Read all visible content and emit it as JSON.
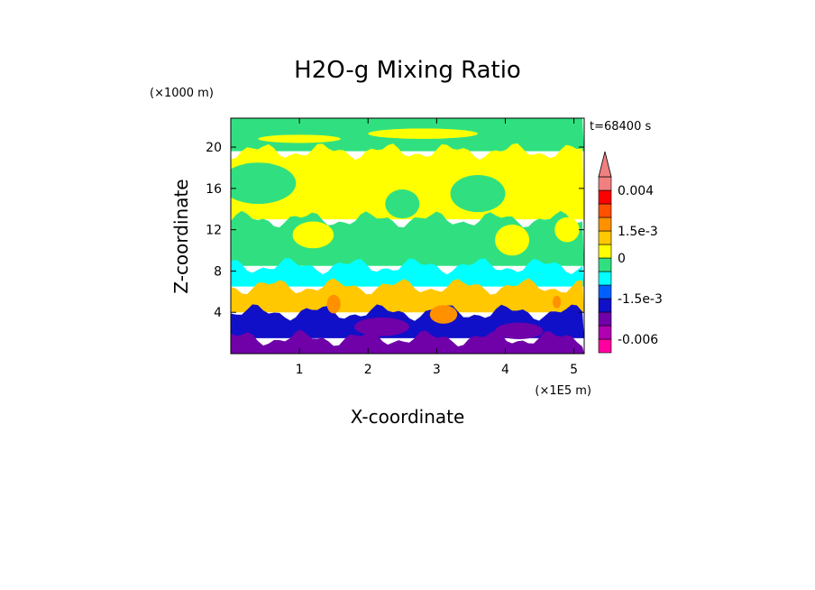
{
  "chart_data": {
    "type": "heatmap",
    "title": "H2O-g Mixing Ratio",
    "xlabel": "X-coordinate",
    "ylabel": "Z-coordinate",
    "x_unit": "(×1E5 m)",
    "y_unit": "(×1000 m)",
    "time_label": "t=68400 s",
    "xlim": [
      0,
      5.15
    ],
    "ylim": [
      0,
      22.8
    ],
    "x_ticks": [
      "1",
      "2",
      "3",
      "4",
      "5"
    ],
    "y_ticks": [
      "4",
      "8",
      "12",
      "16",
      "20"
    ],
    "colorbar": {
      "labels": [
        "0.004",
        "1.5e-3",
        "0",
        "-1.5e-3",
        "-0.006"
      ],
      "colors": [
        "#ff00a0",
        "#b000b0",
        "#7000a8",
        "#1010c8",
        "#0060ff",
        "#00ffff",
        "#30e080",
        "#ffff00",
        "#ffc800",
        "#ff9000",
        "#ff5000",
        "#ff0000",
        "#f08080"
      ],
      "extend": "max"
    },
    "layers": [
      {
        "zmin": 19.6,
        "zmax": 22.8,
        "color": "#30e080"
      },
      {
        "zmin": 13.0,
        "zmax": 19.6,
        "color": "#ffff00"
      },
      {
        "zmin": 8.5,
        "zmax": 13.0,
        "color": "#30e080"
      },
      {
        "zmin": 6.5,
        "zmax": 8.5,
        "color": "#00ffff"
      },
      {
        "zmin": 4.0,
        "zmax": 6.5,
        "color": "#ffc800"
      },
      {
        "zmin": 1.5,
        "zmax": 4.0,
        "color": "#1010c8"
      },
      {
        "zmin": 0.0,
        "zmax": 1.5,
        "color": "#7000a8"
      }
    ],
    "features": [
      {
        "x": 1.5,
        "z": 4.8,
        "rx": 0.1,
        "rz": 0.9,
        "color": "#ff9000"
      },
      {
        "x": 3.1,
        "z": 3.8,
        "rx": 0.2,
        "rz": 0.9,
        "color": "#ff9000"
      },
      {
        "x": 4.75,
        "z": 5.0,
        "rx": 0.06,
        "rz": 0.6,
        "color": "#ff9000"
      },
      {
        "x": 0.4,
        "z": 16.5,
        "rx": 0.55,
        "rz": 2.0,
        "color": "#30e080"
      },
      {
        "x": 3.6,
        "z": 15.5,
        "rx": 0.4,
        "rz": 1.8,
        "color": "#30e080"
      },
      {
        "x": 2.5,
        "z": 14.5,
        "rx": 0.25,
        "rz": 1.4,
        "color": "#30e080"
      },
      {
        "x": 1.2,
        "z": 11.5,
        "rx": 0.3,
        "rz": 1.3,
        "color": "#ffff00"
      },
      {
        "x": 4.1,
        "z": 11.0,
        "rx": 0.25,
        "rz": 1.5,
        "color": "#ffff00"
      },
      {
        "x": 4.9,
        "z": 12.0,
        "rx": 0.18,
        "rz": 1.2,
        "color": "#ffff00"
      },
      {
        "x": 2.2,
        "z": 2.6,
        "rx": 0.4,
        "rz": 0.9,
        "color": "#7000a8"
      },
      {
        "x": 4.2,
        "z": 2.2,
        "rx": 0.35,
        "rz": 0.8,
        "color": "#7000a8"
      },
      {
        "x": 2.8,
        "z": 21.3,
        "rx": 0.8,
        "rz": 0.5,
        "color": "#ffff00"
      },
      {
        "x": 1.0,
        "z": 20.8,
        "rx": 0.6,
        "rz": 0.4,
        "color": "#ffff00"
      }
    ]
  }
}
